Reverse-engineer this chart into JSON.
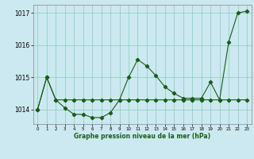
{
  "title": "Graphe pression niveau de la mer (hPa)",
  "bg": "#cce8f0",
  "grid_color": "#88ccbb",
  "lc": "#1a5c1a",
  "xlim": [
    -0.5,
    23.5
  ],
  "ylim": [
    1013.55,
    1017.25
  ],
  "yticks": [
    1014,
    1015,
    1016,
    1017
  ],
  "xticks": [
    0,
    1,
    2,
    3,
    4,
    5,
    6,
    7,
    8,
    9,
    10,
    11,
    12,
    13,
    14,
    15,
    16,
    17,
    18,
    19,
    20,
    21,
    22,
    23
  ],
  "curve1_x": [
    0,
    1,
    2,
    3,
    4,
    5,
    6,
    7,
    8,
    9,
    10,
    11,
    12,
    13,
    14,
    15,
    16,
    17,
    18,
    19,
    20,
    21,
    22,
    23
  ],
  "curve1_y": [
    1014.0,
    1015.0,
    1014.3,
    1014.05,
    1013.85,
    1013.85,
    1013.75,
    1013.75,
    1013.9,
    1014.3,
    1015.0,
    1015.55,
    1015.35,
    1015.05,
    1014.7,
    1014.5,
    1014.35,
    1014.35,
    1014.35,
    1014.85,
    1014.3,
    1016.1,
    1017.0,
    1017.05
  ],
  "curve2_x": [
    0,
    1,
    2,
    3,
    4,
    5,
    6,
    7,
    8,
    9,
    10,
    11,
    12,
    13,
    14,
    15,
    16,
    17,
    18,
    19,
    20,
    21,
    22,
    23
  ],
  "curve2_y": [
    1014.0,
    1015.0,
    1014.3,
    1014.3,
    1014.3,
    1014.3,
    1014.3,
    1014.3,
    1014.3,
    1014.3,
    1014.3,
    1014.3,
    1014.3,
    1014.3,
    1014.3,
    1014.3,
    1014.3,
    1014.3,
    1014.3,
    1014.3,
    1014.3,
    1014.3,
    1014.3,
    1014.3
  ]
}
